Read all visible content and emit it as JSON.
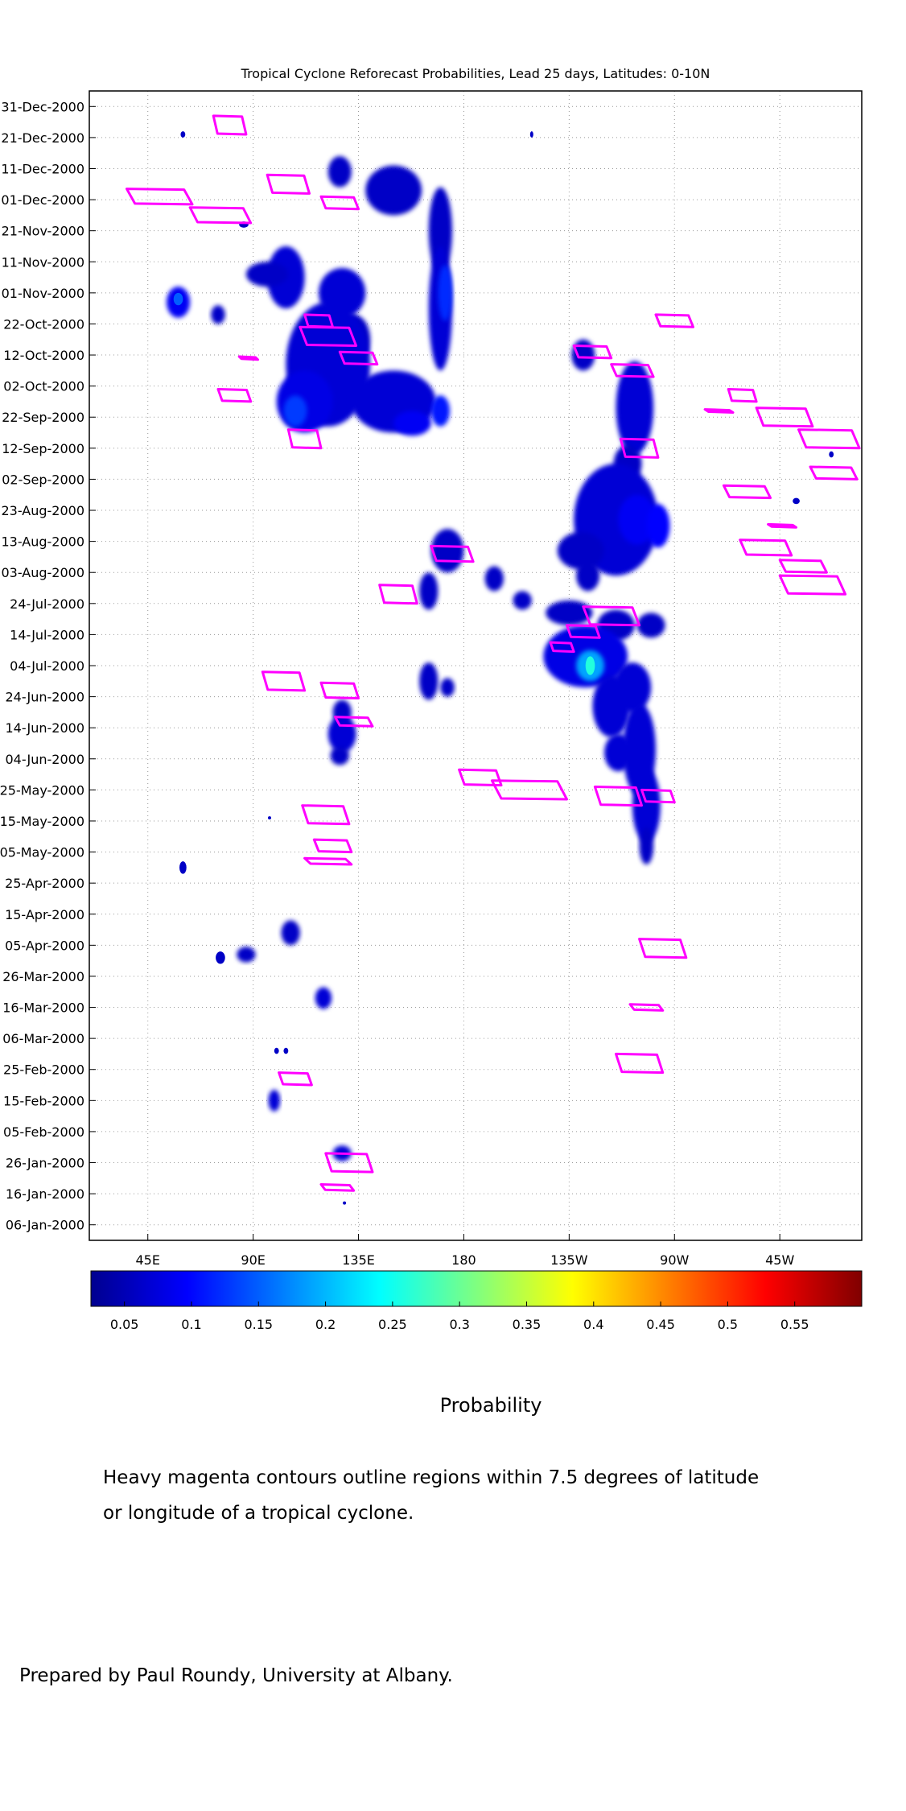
{
  "chart_data": {
    "type": "heatmap",
    "title": "Tropical Cyclone Reforecast Probabilities, Lead 25 days, Latitudes: 0-10N",
    "xlabel": "",
    "ylabel": "",
    "x_ticks": [
      "45E",
      "90E",
      "135E",
      "180",
      "135W",
      "90W",
      "45W"
    ],
    "x_tick_lon_east": [
      45,
      90,
      135,
      180,
      225,
      270,
      315
    ],
    "x_range_lon_east": [
      20,
      350
    ],
    "y_ticks": [
      "31-Dec-2000",
      "21-Dec-2000",
      "11-Dec-2000",
      "01-Dec-2000",
      "21-Nov-2000",
      "11-Nov-2000",
      "01-Nov-2000",
      "22-Oct-2000",
      "12-Oct-2000",
      "02-Oct-2000",
      "22-Sep-2000",
      "12-Sep-2000",
      "02-Sep-2000",
      "23-Aug-2000",
      "13-Aug-2000",
      "03-Aug-2000",
      "24-Jul-2000",
      "14-Jul-2000",
      "04-Jul-2000",
      "24-Jun-2000",
      "14-Jun-2000",
      "04-Jun-2000",
      "25-May-2000",
      "15-May-2000",
      "05-May-2000",
      "25-Apr-2000",
      "15-Apr-2000",
      "05-Apr-2000",
      "26-Mar-2000",
      "16-Mar-2000",
      "06-Mar-2000",
      "25-Feb-2000",
      "15-Feb-2000",
      "05-Feb-2000",
      "26-Jan-2000",
      "16-Jan-2000",
      "06-Jan-2000"
    ],
    "y_range_days": [
      0,
      370
    ],
    "grid": true,
    "colorbar": {
      "ticks": [
        "0.05",
        "0.1",
        "0.15",
        "0.2",
        "0.25",
        "0.3",
        "0.35",
        "0.4",
        "0.45",
        "0.5",
        "0.55"
      ],
      "range": [
        0.025,
        0.6
      ],
      "label": "Probability"
    },
    "probability_regions": [
      {
        "lon": 127,
        "day": 344,
        "rlon": 5,
        "rday": 5,
        "p": 0.06
      },
      {
        "lon": 150,
        "day": 338,
        "rlon": 12,
        "rday": 8,
        "p": 0.06
      },
      {
        "lon": 170,
        "day": 325,
        "rlon": 5,
        "rday": 14,
        "p": 0.06
      },
      {
        "lon": 104,
        "day": 310,
        "rlon": 8,
        "rday": 10,
        "p": 0.07
      },
      {
        "lon": 128,
        "day": 305,
        "rlon": 10,
        "rday": 8,
        "p": 0.07
      },
      {
        "lon": 170,
        "day": 300,
        "rlon": 5,
        "rday": 20,
        "p": 0.07
      },
      {
        "lon": 172,
        "day": 305,
        "rlon": 3,
        "rday": 9,
        "p": 0.12
      },
      {
        "lon": 133,
        "day": 290,
        "rlon": 7,
        "rday": 8,
        "p": 0.06
      },
      {
        "lon": 122,
        "day": 282,
        "rlon": 18,
        "rday": 20,
        "p": 0.07
      },
      {
        "lon": 112,
        "day": 270,
        "rlon": 12,
        "rday": 10,
        "p": 0.08
      },
      {
        "lon": 150,
        "day": 270,
        "rlon": 18,
        "rday": 10,
        "p": 0.07
      },
      {
        "lon": 108,
        "day": 267,
        "rlon": 5,
        "rday": 5,
        "p": 0.13
      },
      {
        "lon": 170,
        "day": 267,
        "rlon": 4,
        "rday": 5,
        "p": 0.11
      },
      {
        "lon": 158,
        "day": 263,
        "rlon": 8,
        "rday": 4,
        "p": 0.09
      },
      {
        "lon": 58,
        "day": 302,
        "rlon": 5,
        "rday": 5,
        "p": 0.09
      },
      {
        "lon": 58,
        "day": 303,
        "rlon": 2,
        "rday": 2,
        "p": 0.15
      },
      {
        "lon": 75,
        "day": 298,
        "rlon": 3,
        "rday": 3,
        "p": 0.06
      },
      {
        "lon": 96,
        "day": 311,
        "rlon": 9,
        "rday": 4,
        "p": 0.06
      },
      {
        "lon": 231,
        "day": 285,
        "rlon": 5,
        "rday": 5,
        "p": 0.06
      },
      {
        "lon": 253,
        "day": 268,
        "rlon": 8,
        "rday": 15,
        "p": 0.07
      },
      {
        "lon": 250,
        "day": 250,
        "rlon": 6,
        "rday": 6,
        "p": 0.06
      },
      {
        "lon": 245,
        "day": 232,
        "rlon": 18,
        "rday": 18,
        "p": 0.07
      },
      {
        "lon": 254,
        "day": 232,
        "rlon": 8,
        "rday": 8,
        "p": 0.09
      },
      {
        "lon": 263,
        "day": 230,
        "rlon": 5,
        "rday": 7,
        "p": 0.1
      },
      {
        "lon": 230,
        "day": 222,
        "rlon": 10,
        "rday": 6,
        "p": 0.06
      },
      {
        "lon": 233,
        "day": 214,
        "rlon": 5,
        "rday": 5,
        "p": 0.06
      },
      {
        "lon": 173,
        "day": 222,
        "rlon": 7,
        "rday": 7,
        "p": 0.06
      },
      {
        "lon": 165,
        "day": 209,
        "rlon": 4,
        "rday": 6,
        "p": 0.06
      },
      {
        "lon": 193,
        "day": 213,
        "rlon": 4,
        "rday": 4,
        "p": 0.06
      },
      {
        "lon": 205,
        "day": 206,
        "rlon": 4,
        "rday": 3,
        "p": 0.06
      },
      {
        "lon": 225,
        "day": 202,
        "rlon": 10,
        "rday": 4,
        "p": 0.06
      },
      {
        "lon": 245,
        "day": 198,
        "rlon": 8,
        "rday": 5,
        "p": 0.06
      },
      {
        "lon": 260,
        "day": 198,
        "rlon": 6,
        "rday": 4,
        "p": 0.06
      },
      {
        "lon": 232,
        "day": 188,
        "rlon": 18,
        "rday": 10,
        "p": 0.08
      },
      {
        "lon": 234,
        "day": 185,
        "rlon": 6,
        "rday": 5,
        "p": 0.19
      },
      {
        "lon": 234,
        "day": 185,
        "rlon": 2,
        "rday": 3,
        "p": 0.26
      },
      {
        "lon": 252,
        "day": 178,
        "rlon": 8,
        "rday": 8,
        "p": 0.07
      },
      {
        "lon": 243,
        "day": 172,
        "rlon": 8,
        "rday": 10,
        "p": 0.07
      },
      {
        "lon": 255,
        "day": 158,
        "rlon": 7,
        "rday": 15,
        "p": 0.07
      },
      {
        "lon": 246,
        "day": 157,
        "rlon": 6,
        "rday": 6,
        "p": 0.07
      },
      {
        "lon": 258,
        "day": 140,
        "rlon": 6,
        "rday": 12,
        "p": 0.07
      },
      {
        "lon": 258,
        "day": 127,
        "rlon": 3,
        "rday": 6,
        "p": 0.06
      },
      {
        "lon": 165,
        "day": 180,
        "rlon": 4,
        "rday": 6,
        "p": 0.06
      },
      {
        "lon": 173,
        "day": 178,
        "rlon": 3,
        "rday": 3,
        "p": 0.06
      },
      {
        "lon": 128,
        "day": 170,
        "rlon": 4,
        "rday": 4,
        "p": 0.06
      },
      {
        "lon": 128,
        "day": 163,
        "rlon": 6,
        "rday": 6,
        "p": 0.07
      },
      {
        "lon": 127,
        "day": 156,
        "rlon": 4,
        "rday": 3,
        "p": 0.06
      },
      {
        "lon": 60,
        "day": 120,
        "rlon": 1.5,
        "rday": 2,
        "p": 0.06
      },
      {
        "lon": 106,
        "day": 99,
        "rlon": 4,
        "rday": 4,
        "p": 0.06
      },
      {
        "lon": 87,
        "day": 92,
        "rlon": 4,
        "rday": 2.5,
        "p": 0.06
      },
      {
        "lon": 76,
        "day": 91,
        "rlon": 2,
        "rday": 2,
        "p": 0.06
      },
      {
        "lon": 120,
        "day": 78,
        "rlon": 3.5,
        "rday": 3.5,
        "p": 0.07
      },
      {
        "lon": 100,
        "day": 61,
        "rlon": 1,
        "rday": 1,
        "p": 0.06
      },
      {
        "lon": 104,
        "day": 61,
        "rlon": 1,
        "rday": 1,
        "p": 0.06
      },
      {
        "lon": 99,
        "day": 45,
        "rlon": 2.5,
        "rday": 3.5,
        "p": 0.07
      },
      {
        "lon": 128,
        "day": 28,
        "rlon": 4,
        "rday": 2.5,
        "p": 0.07
      },
      {
        "lon": 60,
        "day": 356,
        "rlon": 1,
        "rday": 1,
        "p": 0.06
      },
      {
        "lon": 86,
        "day": 327,
        "rlon": 2,
        "rday": 1,
        "p": 0.06
      },
      {
        "lon": 337,
        "day": 253,
        "rlon": 1,
        "rday": 1,
        "p": 0.06
      },
      {
        "lon": 322,
        "day": 238,
        "rlon": 1.5,
        "rday": 1,
        "p": 0.06
      },
      {
        "lon": 209,
        "day": 356,
        "rlon": 0.5,
        "rday": 1,
        "p": 0.06
      },
      {
        "lon": 97,
        "day": 136,
        "rlon": 0.5,
        "rday": 0.5,
        "p": 0.06
      },
      {
        "lon": 129,
        "day": 12,
        "rlon": 0.5,
        "rday": 0.5,
        "p": 0.06
      }
    ],
    "cyclone_contours": [
      {
        "lon": 80,
        "day": 359,
        "rlon": 7,
        "rday": 3
      },
      {
        "lon": 50,
        "day": 336,
        "rlon": 14,
        "rday": 2.5
      },
      {
        "lon": 76,
        "day": 330,
        "rlon": 13,
        "rday": 2.5
      },
      {
        "lon": 105,
        "day": 340,
        "rlon": 9,
        "rday": 3
      },
      {
        "lon": 127,
        "day": 334,
        "rlon": 8,
        "rday": 2
      },
      {
        "lon": 118,
        "day": 296,
        "rlon": 6,
        "rday": 2
      },
      {
        "lon": 122,
        "day": 291,
        "rlon": 12,
        "rday": 3
      },
      {
        "lon": 135,
        "day": 284,
        "rlon": 8,
        "rday": 2
      },
      {
        "lon": 82,
        "day": 272,
        "rlon": 7,
        "rday": 2
      },
      {
        "lon": 112,
        "day": 258,
        "rlon": 7,
        "rday": 3
      },
      {
        "lon": 88,
        "day": 284,
        "rlon": 4,
        "rday": 0.5
      },
      {
        "lon": 252,
        "day": 280,
        "rlon": 9,
        "rday": 2
      },
      {
        "lon": 235,
        "day": 286,
        "rlon": 8,
        "rday": 2
      },
      {
        "lon": 270,
        "day": 296,
        "rlon": 8,
        "rday": 2
      },
      {
        "lon": 255,
        "day": 255,
        "rlon": 8,
        "rday": 3
      },
      {
        "lon": 175,
        "day": 221,
        "rlon": 9,
        "rday": 2.5
      },
      {
        "lon": 152,
        "day": 208,
        "rlon": 8,
        "rday": 3
      },
      {
        "lon": 243,
        "day": 201,
        "rlon": 12,
        "rday": 3
      },
      {
        "lon": 231,
        "day": 196,
        "rlon": 7,
        "rday": 2
      },
      {
        "lon": 222,
        "day": 191,
        "rlon": 5,
        "rday": 1.5
      },
      {
        "lon": 103,
        "day": 180,
        "rlon": 9,
        "rday": 3
      },
      {
        "lon": 127,
        "day": 177,
        "rlon": 8,
        "rday": 2.5
      },
      {
        "lon": 133,
        "day": 167,
        "rlon": 8,
        "rday": 1.5
      },
      {
        "lon": 187,
        "day": 149,
        "rlon": 9,
        "rday": 2.5
      },
      {
        "lon": 208,
        "day": 145,
        "rlon": 16,
        "rday": 3
      },
      {
        "lon": 246,
        "day": 143,
        "rlon": 10,
        "rday": 3
      },
      {
        "lon": 263,
        "day": 143,
        "rlon": 7,
        "rday": 2
      },
      {
        "lon": 121,
        "day": 137,
        "rlon": 10,
        "rday": 3
      },
      {
        "lon": 124,
        "day": 127,
        "rlon": 8,
        "rday": 2
      },
      {
        "lon": 122,
        "day": 122,
        "rlon": 10,
        "rday": 1
      },
      {
        "lon": 265,
        "day": 94,
        "rlon": 10,
        "rday": 3
      },
      {
        "lon": 258,
        "day": 75,
        "rlon": 7,
        "rday": 1
      },
      {
        "lon": 255,
        "day": 57,
        "rlon": 10,
        "rday": 3
      },
      {
        "lon": 108,
        "day": 52,
        "rlon": 7,
        "rday": 2
      },
      {
        "lon": 131,
        "day": 25,
        "rlon": 10,
        "rday": 3
      },
      {
        "lon": 126,
        "day": 17,
        "rlon": 7,
        "rday": 1
      },
      {
        "lon": 299,
        "day": 272,
        "rlon": 6,
        "rday": 2
      },
      {
        "lon": 317,
        "day": 265,
        "rlon": 12,
        "rday": 3
      },
      {
        "lon": 336,
        "day": 258,
        "rlon": 13,
        "rday": 3
      },
      {
        "lon": 338,
        "day": 247,
        "rlon": 10,
        "rday": 2
      },
      {
        "lon": 301,
        "day": 241,
        "rlon": 10,
        "rday": 2
      },
      {
        "lon": 289,
        "day": 267,
        "rlon": 6,
        "rday": 0.5
      },
      {
        "lon": 316,
        "day": 230,
        "rlon": 6,
        "rday": 0.5
      },
      {
        "lon": 309,
        "day": 223,
        "rlon": 11,
        "rday": 2.5
      },
      {
        "lon": 325,
        "day": 217,
        "rlon": 10,
        "rday": 2
      },
      {
        "lon": 329,
        "day": 211,
        "rlon": 14,
        "rday": 3
      }
    ]
  },
  "notes": {
    "colorbar_label": "Probability",
    "description_line1": "Heavy magenta contours outline regions within 7.5 degrees of latitude",
    "description_line2": "or longitude of a tropical cyclone.",
    "credit": "Prepared by Paul Roundy, University at Albany."
  }
}
